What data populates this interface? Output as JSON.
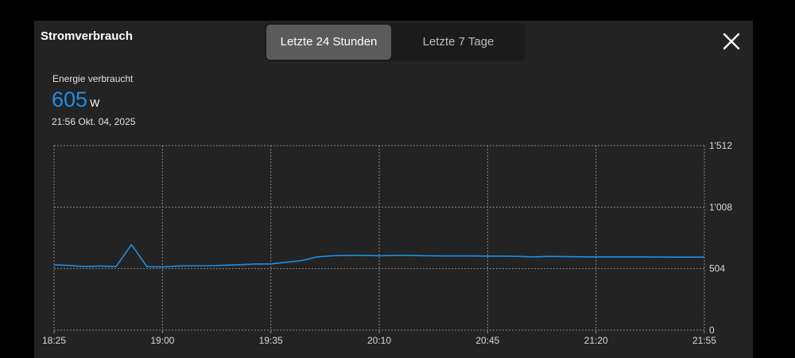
{
  "header": {
    "title": "Stromverbrauch",
    "close_icon": "close-icon"
  },
  "tabs": [
    {
      "label": "Letzte 24 Stunden",
      "active": true
    },
    {
      "label": "Letzte 7 Tage",
      "active": false
    }
  ],
  "summary": {
    "label": "Energie verbraucht",
    "value": "605",
    "unit": "W",
    "timestamp": "21:56  Okt. 04, 2025"
  },
  "colors": {
    "accent": "#1a8fe6",
    "panel": "#232323",
    "grid": "#8a8a8a"
  },
  "chart_data": {
    "type": "line",
    "x_ticks": [
      "18:25",
      "19:00",
      "19:35",
      "20:10",
      "20:45",
      "21:20",
      "21:55"
    ],
    "y_ticks": [
      "0",
      "504",
      "1'008",
      "1'512"
    ],
    "ylim": [
      0,
      1512
    ],
    "xlim": [
      "18:25",
      "21:55"
    ],
    "grid": true,
    "series": [
      {
        "x": [
          "18:25",
          "18:30",
          "18:35",
          "18:40",
          "18:45",
          "18:50",
          "18:55",
          "19:00",
          "19:05",
          "19:10",
          "19:15",
          "19:20",
          "19:25",
          "19:30",
          "19:35",
          "19:40",
          "19:45",
          "19:50",
          "19:55",
          "20:00",
          "20:05",
          "20:10",
          "20:15",
          "20:20",
          "20:25",
          "20:30",
          "20:35",
          "20:40",
          "20:45",
          "20:50",
          "20:55",
          "21:00",
          "21:05",
          "21:10",
          "21:15",
          "21:20",
          "21:25",
          "21:30",
          "21:35",
          "21:40",
          "21:45",
          "21:50",
          "21:55"
        ],
        "y": [
          535,
          530,
          520,
          525,
          520,
          700,
          520,
          518,
          525,
          528,
          528,
          532,
          536,
          542,
          542,
          556,
          570,
          600,
          610,
          612,
          612,
          610,
          612,
          612,
          610,
          608,
          608,
          608,
          607,
          607,
          604,
          600,
          604,
          602,
          601,
          600,
          600,
          600,
          600,
          599,
          598,
          598,
          598
        ]
      }
    ]
  }
}
